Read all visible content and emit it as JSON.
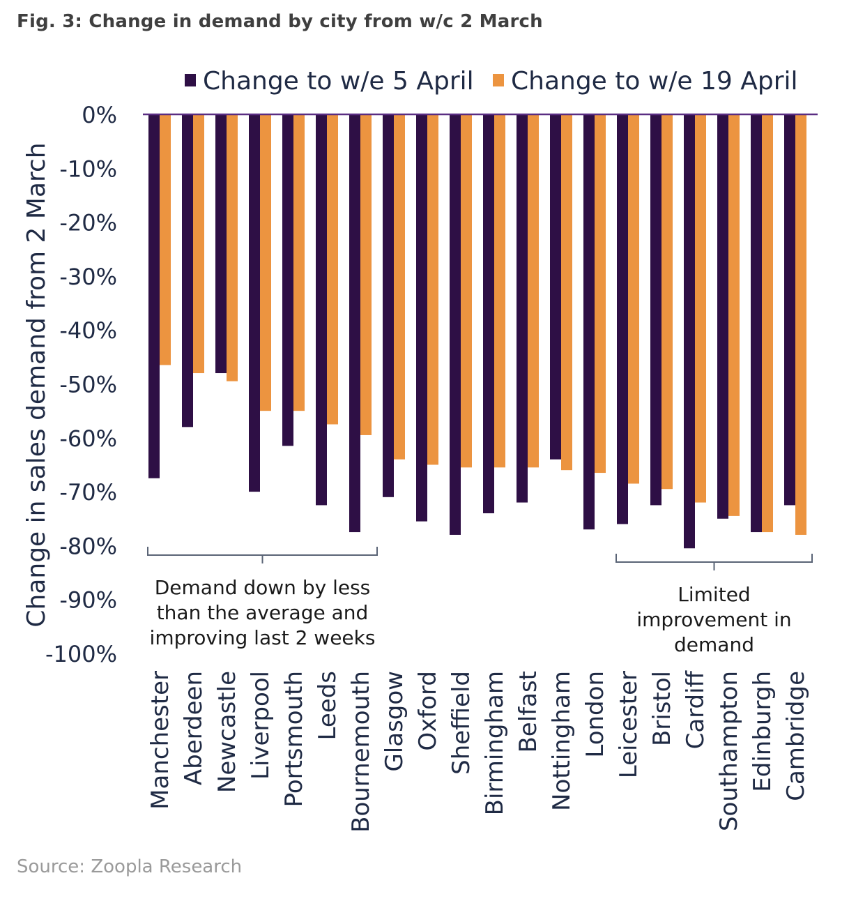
{
  "figure": {
    "title": "Fig. 3: Change in demand by city from w/c 2 March",
    "source": "Source: Zoopla Research"
  },
  "colors": {
    "series1": "#2e0f45",
    "series2": "#ec9440",
    "axis_text": "#1f2a44",
    "bracket": "#5a6476"
  },
  "chart_data": {
    "type": "bar",
    "ylabel": "Change in sales demand from 2 March",
    "ylim": [
      -100,
      0
    ],
    "yticks": [
      "0%",
      "-10%",
      "-20%",
      "-30%",
      "-40%",
      "-50%",
      "-60%",
      "-70%",
      "-80%",
      "-90%",
      "-100%"
    ],
    "legend_position": "top",
    "grid": false,
    "categories": [
      "Manchester",
      "Aberdeen",
      "Newcastle",
      "Liverpool",
      "Portsmouth",
      "Leeds",
      "Bournemouth",
      "Glasgow",
      "Oxford",
      "Sheffield",
      "Birmingham",
      "Belfast",
      "Nottingham",
      "London",
      "Leicester",
      "Bristol",
      "Cardiff",
      "Southampton",
      "Edinburgh",
      "Cambridge"
    ],
    "series": [
      {
        "name": "Change to w/e 5 April",
        "values": [
          -67.5,
          -58,
          -48,
          -70,
          -61.5,
          -72.5,
          -77.5,
          -71,
          -75.5,
          -78,
          -74,
          -72,
          -64,
          -77,
          -76,
          -72.5,
          -80.5,
          -75,
          -77.5,
          -72.5
        ]
      },
      {
        "name": "Change to w/e 19 April",
        "values": [
          -46.5,
          -48,
          -49.5,
          -55,
          -55,
          -57.5,
          -59.5,
          -64,
          -65,
          -65.5,
          -65.5,
          -65.5,
          -66,
          -66.5,
          -68.5,
          -69.5,
          -72,
          -74.5,
          -77.5,
          -78
        ]
      }
    ],
    "annotations": [
      {
        "text_lines": [
          "Demand down by less",
          "than the average and",
          "improving last 2 weeks"
        ],
        "from": "Manchester",
        "to": "Bournemouth"
      },
      {
        "text_lines": [
          "Limited",
          "improvement in",
          "demand"
        ],
        "from": "Leicester",
        "to": "Cambridge"
      }
    ]
  }
}
